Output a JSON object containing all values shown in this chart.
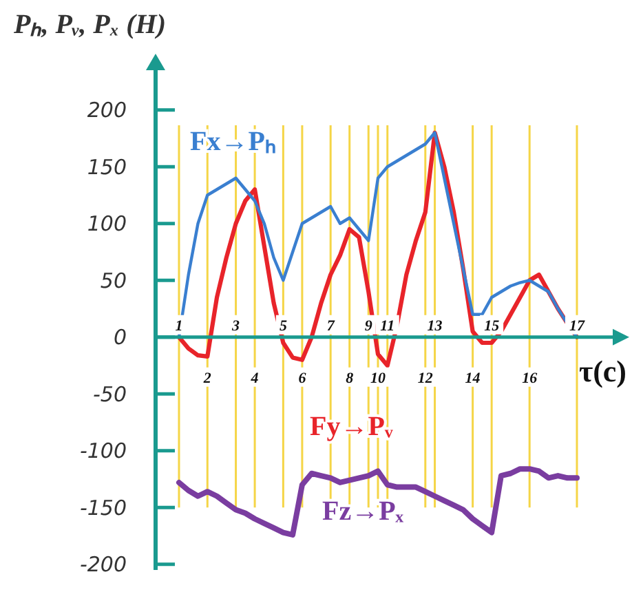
{
  "chart_data": {
    "type": "line",
    "ylabel": "Pₕ, Pᵥ, Pₓ (H)",
    "xlabel": "τ(c)",
    "categories": [
      "1",
      null,
      null,
      "2",
      null,
      null,
      "3",
      null,
      "4",
      null,
      null,
      "5",
      null,
      "6",
      null,
      null,
      "7",
      null,
      "8",
      null,
      "9",
      "10",
      "11",
      null,
      null,
      null,
      "12",
      "13",
      null,
      null,
      null,
      "14",
      null,
      "15",
      null,
      null,
      null,
      "16",
      null,
      null,
      null,
      null,
      "17"
    ],
    "series": [
      {
        "name": "Fx→Pₕ",
        "color": "#3a7fd0",
        "values": [
          0,
          55,
          100,
          125,
          130,
          135,
          140,
          130,
          120,
          100,
          70,
          50,
          75,
          100,
          105,
          110,
          115,
          100,
          105,
          95,
          85,
          140,
          150,
          155,
          160,
          165,
          170,
          180,
          140,
          100,
          60,
          20,
          20,
          35,
          40,
          45,
          48,
          50,
          45,
          40,
          25,
          12,
          0
        ]
      },
      {
        "name": "Fy→Pᵥ",
        "color": "#e8242a",
        "values": [
          0,
          -10,
          -16,
          -17,
          35,
          70,
          100,
          120,
          130,
          80,
          30,
          -5,
          -18,
          -20,
          0,
          30,
          55,
          72,
          95,
          88,
          40,
          -15,
          -25,
          10,
          55,
          85,
          110,
          180,
          150,
          110,
          60,
          5,
          -5,
          -5,
          5,
          20,
          35,
          50,
          55,
          40,
          25,
          12,
          0
        ]
      },
      {
        "name": "Fz→Pₓ",
        "color": "#7a3da0",
        "values": [
          -128,
          -135,
          -140,
          -136,
          -140,
          -146,
          -152,
          -155,
          -160,
          -164,
          -168,
          -172,
          -174,
          -130,
          -120,
          -122,
          -124,
          -128,
          -126,
          -124,
          -122,
          -118,
          -130,
          -132,
          -132,
          -132,
          -136,
          -140,
          -144,
          -148,
          -152,
          -160,
          -166,
          -172,
          -122,
          -120,
          -116,
          -116,
          -118,
          -124,
          -122,
          -124,
          -124
        ]
      }
    ],
    "ylim": [
      -205,
      235
    ],
    "yticks": [
      -200,
      -150,
      -100,
      -50,
      0,
      50,
      100,
      150,
      200
    ],
    "grid": "x",
    "legend": "bottom left",
    "marker": "none",
    "line_style": "solid"
  }
}
